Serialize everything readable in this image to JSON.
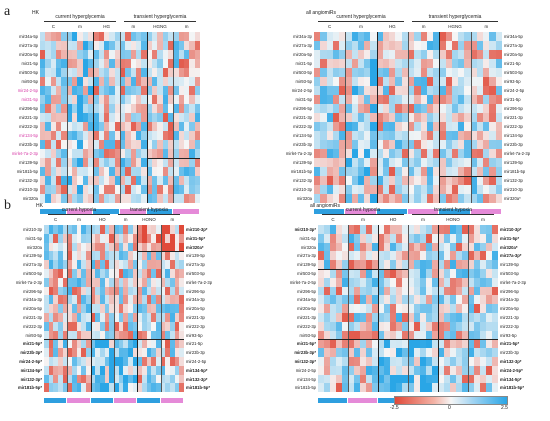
{
  "panels": [
    {
      "id": "a",
      "letter": "a",
      "heatmaps": [
        {
          "title": "HK",
          "group1": "current hyperglycemia",
          "group2": "transient hyperglycemia",
          "subs": [
            "C",
            "m",
            "HG",
            "m",
            "HGNG",
            "m"
          ],
          "left_labels": [
            "mir34a-5p",
            "mir27a-3p",
            "mir20a-5p",
            "mir21-5p",
            "mir503-5p",
            "mir93-5p",
            "mir24-2-5p",
            "mir31-5p",
            "mir296-5p",
            "mir221-3p",
            "mir222-3p",
            "mir134-5p",
            "mir23b-3p",
            "mirlet-7a-2-3p",
            "mir139-5p",
            "mir181b-5p",
            "mir132-3p",
            "mir210-3p",
            "mir320a"
          ],
          "right_labels": [],
          "bold_left": [],
          "bold_right": [],
          "pink_left": [
            6,
            7,
            11,
            13
          ],
          "seed": 11
        },
        {
          "title": "all angiomiRs",
          "group1": "current hyperglycemia",
          "group2": "transient hyperglycemia",
          "subs": [
            "C",
            "m",
            "HG",
            "m",
            "HGNG",
            "m"
          ],
          "left_labels": [
            "mir34a-3p",
            "mir27a-3p",
            "mir20a-5p",
            "mir21-5p",
            "mir503-5p",
            "mir93-5p",
            "mir24-2-5p",
            "mir31-5p",
            "mir296-5p",
            "mir221-3p",
            "mir222-3p",
            "mir134-5p",
            "mir23b-3p",
            "mirlet-7a-2-3p",
            "mir139-5p",
            "mir181b-5p",
            "mir132-3p",
            "mir210-3p",
            "mir320a"
          ],
          "right_labels": [
            "mir34a-5p",
            "mir27a-3p",
            "mir20a-5p",
            "mir21-5p",
            "mir503-5p",
            "mir93-5p",
            "mir24-2-5p",
            "mir31-5p",
            "mir296-5p",
            "mir221-3p",
            "mir222-3p",
            "mir134-5p",
            "mir23b-3p",
            "mirlet-7a-2-3p",
            "mir139-5p",
            "mir181b-5p",
            "mir132-3p",
            "mir210-3p",
            "mir320a*"
          ],
          "bold_left": [],
          "bold_right": [],
          "pink_left": [],
          "seed": 23
        }
      ],
      "a_right_extra": [
        "mir181b-5p",
        "mir132-3p",
        "mir210-3p*",
        "mir320a*"
      ]
    },
    {
      "id": "b",
      "letter": "b",
      "heatmaps": [
        {
          "title": "HK",
          "group1": "current hypoxia",
          "group2": "transient hypoxia",
          "subs": [
            "C",
            "m",
            "HO",
            "m",
            "HONO",
            "m"
          ],
          "left_labels": [
            "mir210-3p",
            "mir31-5p",
            "mir320a",
            "mir139-5p",
            "mir27a-3p",
            "mir503-5p",
            "mirlet-7a-2-3p",
            "mir296-5p",
            "mir34a-3p",
            "mir20a-5p",
            "mir221-3p",
            "mir222-3p",
            "mir93-5p",
            "mir21-5p*",
            "mir23b-3p*",
            "mir24-2-5p*",
            "mir134-5p*",
            "mir132-3p*",
            "mir181b-5p*"
          ],
          "right_labels": [
            "mir210-3p*",
            "mir31-5p*",
            "mir320a*",
            "mir139-5p",
            "mir27a-3p",
            "mir503-5p",
            "mirlet-7a-2-3p",
            "mir296-5p",
            "mir34a-3p",
            "mir20a-5p",
            "mir221-3p",
            "mir222-3p",
            "mir93-5p",
            "mir21-5p",
            "mir23b-3p",
            "mir24-2-5p",
            "mir134-5p*",
            "mir132-3p*",
            "mir181b-5p*"
          ],
          "bold_left": [
            13,
            14,
            15,
            16,
            17,
            18
          ],
          "bold_right": [
            0,
            1,
            2,
            16,
            17,
            18
          ],
          "pink_left": [],
          "seed": 37
        },
        {
          "title": "all angiomiRs",
          "group1": "current hypoxia",
          "group2": "transient hypoxia",
          "subs": [
            "C",
            "m",
            "HO",
            "m",
            "HONO",
            "m"
          ],
          "left_labels": [
            "mir210-3p*",
            "mir31-5p",
            "mir320a",
            "mir27a-3p",
            "mir139-5p",
            "mir503-5p",
            "mirlet-7a-2-5p",
            "mir296-5p",
            "mir34a-5p",
            "mir20a-5p",
            "mir221-3p",
            "mir222-3p",
            "mir93-5p",
            "mir21-5p*",
            "mir23b-3p*",
            "mir132-3p*",
            "mir24-2-5p",
            "mir134-5p",
            "mir181b-5p"
          ],
          "right_labels": [
            "mir210-3p*",
            "mir31-5p*",
            "mir320a*",
            "mir27a-3p*",
            "mir139-5p",
            "mir503-5p",
            "mirlet-7a-2-3p",
            "mir296-5p",
            "mir34a-3p",
            "mir20a-5p",
            "mir221-3p",
            "mir222-3p",
            "mir93-5p",
            "mir21-5p*",
            "mir23b-3p",
            "mir132-3p*",
            "mir24-2-5p*",
            "mir134-5p*",
            "mir181b-5p*"
          ],
          "bold_left": [
            0,
            13,
            14,
            15
          ],
          "bold_right": [
            0,
            1,
            2,
            3,
            13,
            15,
            16,
            17,
            18
          ],
          "pink_left": [],
          "seed": 53
        }
      ]
    }
  ],
  "legend": {
    "min": "-2.5",
    "mid": "0",
    "max": "2.5"
  },
  "colors": {
    "red": "#e04a3a",
    "blue": "#2aa6e6",
    "white": "#f6f6f6",
    "cbar_blue": "#2e9fdf",
    "cbar_pink": "#e58ad8",
    "pink_label": "#d63aa6"
  }
}
